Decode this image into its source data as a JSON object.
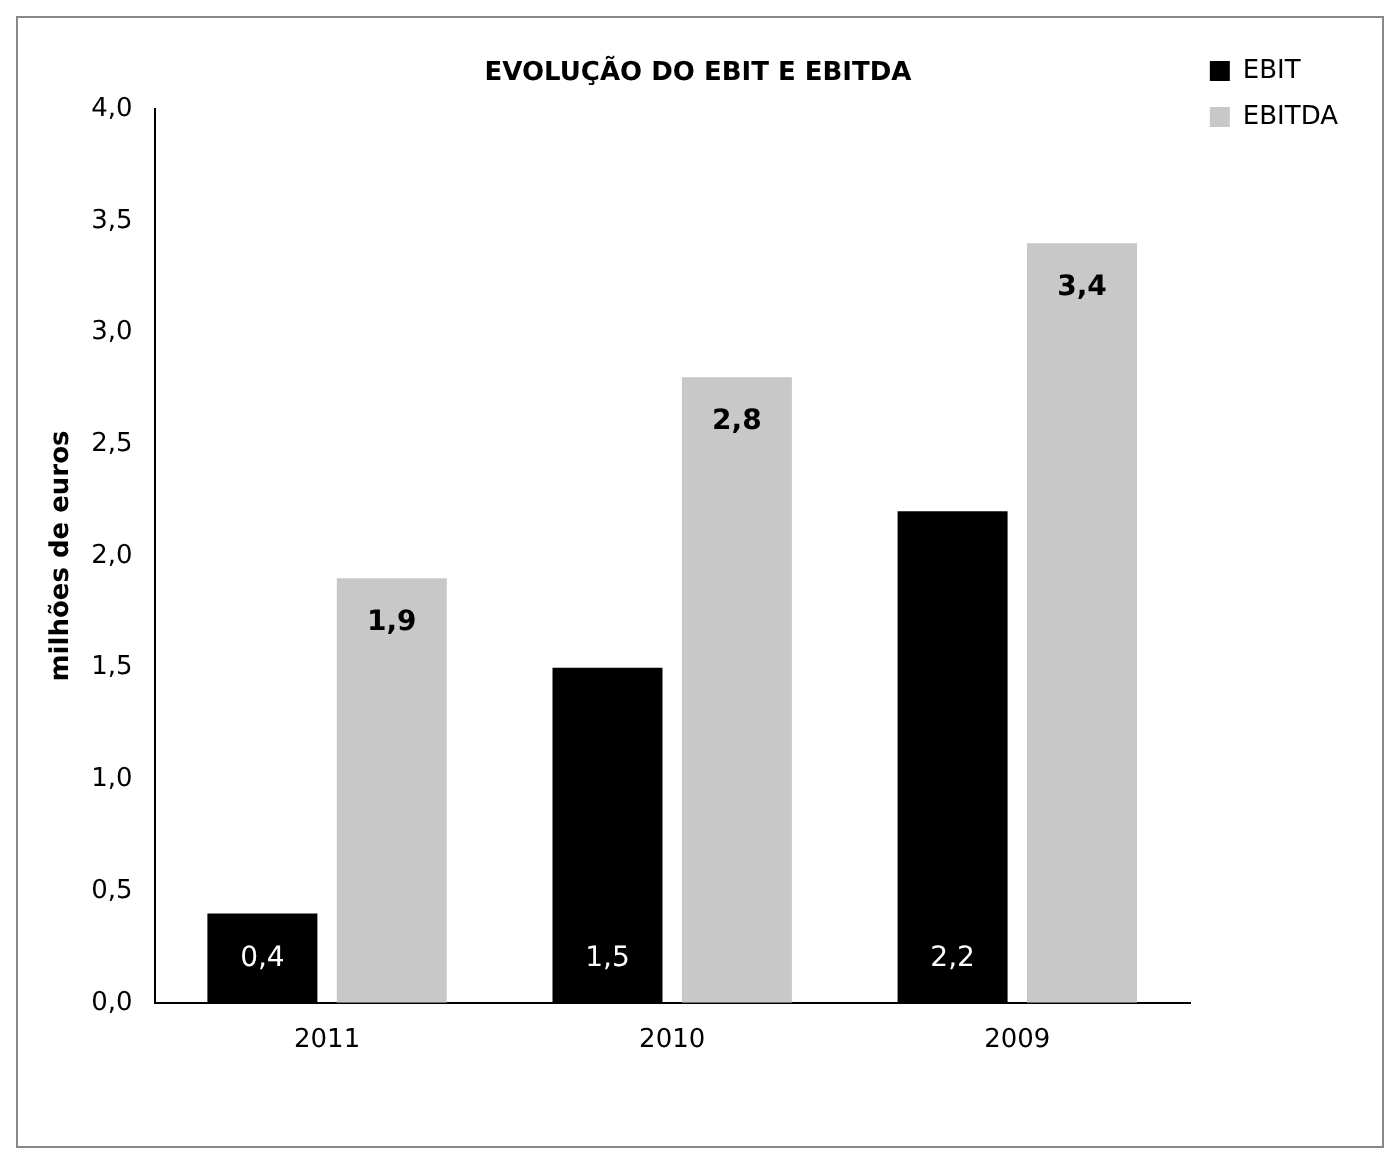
{
  "chart_data": {
    "type": "bar",
    "title": "EVOLUÇÃO DO EBIT E EBITDA",
    "ylabel": "milhões de euros",
    "categories": [
      "2011",
      "2010",
      "2009"
    ],
    "series": [
      {
        "name": "EBIT",
        "color": "#000000",
        "values": [
          0.4,
          1.5,
          2.2
        ],
        "value_labels": [
          "0,4",
          "1,5",
          "2,2"
        ]
      },
      {
        "name": "EBITDA",
        "color": "#c8c8c8",
        "values": [
          1.9,
          2.8,
          3.4
        ],
        "value_labels": [
          "1,9",
          "2,8",
          "3,4"
        ]
      }
    ],
    "ylim": [
      0,
      4
    ],
    "yticks": [
      {
        "value": 0,
        "label": "0,0"
      },
      {
        "value": 0.5,
        "label": "0,5"
      },
      {
        "value": 1,
        "label": "1,0"
      },
      {
        "value": 1.5,
        "label": "1,5"
      },
      {
        "value": 2,
        "label": "2,0"
      },
      {
        "value": 2.5,
        "label": "2,5"
      },
      {
        "value": 3,
        "label": "3,0"
      },
      {
        "value": 3.5,
        "label": "3,5"
      },
      {
        "value": 4,
        "label": "4,0"
      }
    ],
    "grid": false,
    "legend": "top right"
  }
}
